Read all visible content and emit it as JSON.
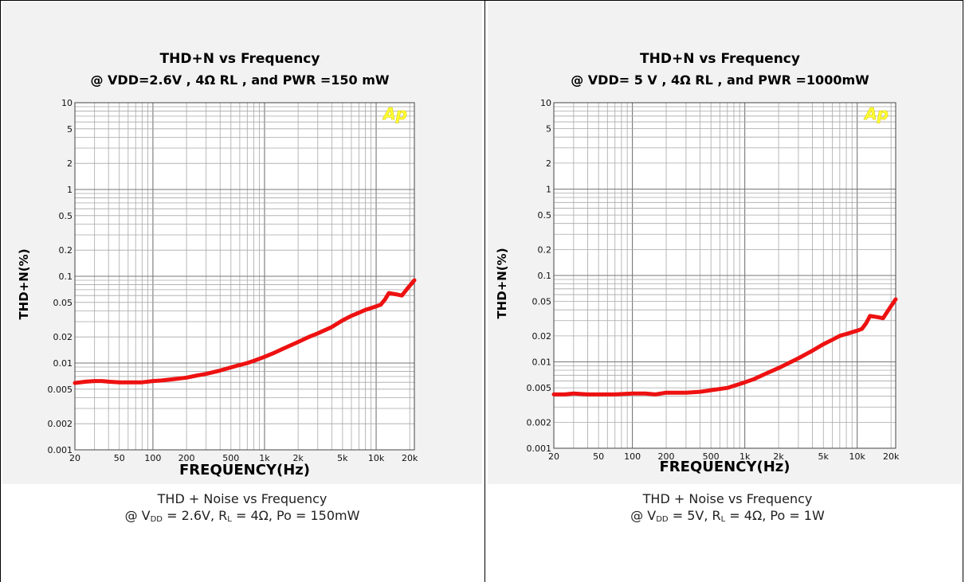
{
  "charts": [
    {
      "caption_line1": "THD + Noise vs Frequency",
      "caption": {
        "at": "@ V",
        "dd": "DD",
        "eq1": " = 2.6V, R",
        "l": "L",
        "eq2": " = 4",
        "ohm": "Ω",
        "tail": ", Po = 150mW"
      }
    },
    {
      "caption_line1": "THD + Noise vs Frequency",
      "caption": {
        "at": "@ V",
        "dd": "DD",
        "eq1": " = 5V, R",
        "l": "L",
        "eq2": " = 4",
        "ohm": "Ω",
        "tail": ", Po = 1W"
      }
    }
  ],
  "chart_data": [
    {
      "type": "line",
      "title": "THD+N vs Frequency",
      "subtitle": "@ VDD=2.6V , 4Ω RL , and PWR =150 mW",
      "xlabel": "FREQUENCY(Hz)",
      "ylabel": "THD+N(%)",
      "x_scale": "log",
      "y_scale": "log",
      "xlim": [
        20,
        22000
      ],
      "ylim": [
        0.001,
        10
      ],
      "x_ticks": [
        20,
        50,
        100,
        200,
        500,
        1000,
        2000,
        5000,
        10000,
        20000
      ],
      "x_tick_labels": [
        "20",
        "50",
        "100",
        "200",
        "500",
        "1k",
        "2k",
        "5k",
        "10k",
        "20k"
      ],
      "y_ticks": [
        10,
        5,
        2,
        1,
        0.5,
        0.2,
        0.1,
        0.05,
        0.02,
        0.01,
        0.005,
        0.002,
        0.001
      ],
      "y_tick_labels": [
        "10",
        "5",
        "2",
        "1",
        "0.5",
        "0.2",
        "0.1",
        "0.05",
        "0.02",
        "0.01",
        "0.005",
        "0.002",
        "0.001"
      ],
      "grid": true,
      "logo": "Ap",
      "series_color": "#ee1111",
      "series": [
        {
          "x": [
            20,
            25,
            30,
            35,
            40,
            50,
            60,
            70,
            80,
            100,
            120,
            150,
            200,
            250,
            300,
            400,
            500,
            600,
            700,
            800,
            1000,
            1200,
            1500,
            2000,
            2500,
            3000,
            4000,
            5000,
            6000,
            7000,
            8000,
            9000,
            10000,
            11000,
            12000,
            13000,
            15000,
            17000,
            19000,
            22000
          ],
          "y": [
            0.0059,
            0.0061,
            0.0062,
            0.0062,
            0.0061,
            0.006,
            0.006,
            0.006,
            0.006,
            0.0062,
            0.0063,
            0.0065,
            0.0068,
            0.0072,
            0.0075,
            0.0082,
            0.0089,
            0.0095,
            0.01,
            0.0106,
            0.0118,
            0.013,
            0.0148,
            0.0175,
            0.02,
            0.022,
            0.026,
            0.031,
            0.035,
            0.038,
            0.041,
            0.043,
            0.045,
            0.047,
            0.054,
            0.064,
            0.062,
            0.06,
            0.072,
            0.09
          ]
        }
      ]
    },
    {
      "type": "line",
      "title": "THD+N vs Frequency",
      "subtitle": "@ VDD= 5 V , 4Ω RL , and PWR =1000mW",
      "xlabel": "FREQUENCY(Hz)",
      "ylabel": "THD+N(%)",
      "x_scale": "log",
      "y_scale": "log",
      "xlim": [
        20,
        22000
      ],
      "ylim": [
        0.001,
        10
      ],
      "x_ticks": [
        20,
        50,
        100,
        200,
        500,
        1000,
        2000,
        5000,
        10000,
        20000
      ],
      "x_tick_labels": [
        "20",
        "50",
        "100",
        "200",
        "500",
        "1k",
        "2k",
        "5k",
        "10k",
        "20k"
      ],
      "y_ticks": [
        10,
        5,
        2,
        1,
        0.5,
        0.2,
        0.1,
        0.05,
        0.02,
        0.01,
        0.005,
        0.002,
        0.001
      ],
      "y_tick_labels": [
        "10",
        "5",
        "2",
        "1",
        "0.5",
        "0.2",
        "0.1",
        "0.05",
        "0.02",
        "0.01",
        "0.005",
        "0.002",
        "0.001"
      ],
      "grid": true,
      "logo": "Ap",
      "series_color": "#ee1111",
      "series": [
        {
          "x": [
            20,
            25,
            30,
            40,
            50,
            70,
            100,
            130,
            160,
            200,
            300,
            400,
            500,
            700,
            1000,
            1200,
            1500,
            2000,
            2500,
            3000,
            4000,
            5000,
            6000,
            7000,
            8000,
            9000,
            10000,
            11000,
            12000,
            13000,
            15000,
            17000,
            19000,
            22000
          ],
          "y": [
            0.0042,
            0.0042,
            0.0043,
            0.0042,
            0.0042,
            0.0042,
            0.0043,
            0.0043,
            0.0042,
            0.0044,
            0.0044,
            0.0045,
            0.0047,
            0.005,
            0.0058,
            0.0063,
            0.0072,
            0.0085,
            0.0098,
            0.011,
            0.0135,
            0.016,
            0.018,
            0.02,
            0.021,
            0.022,
            0.023,
            0.024,
            0.028,
            0.034,
            0.033,
            0.032,
            0.04,
            0.053
          ]
        }
      ]
    }
  ]
}
